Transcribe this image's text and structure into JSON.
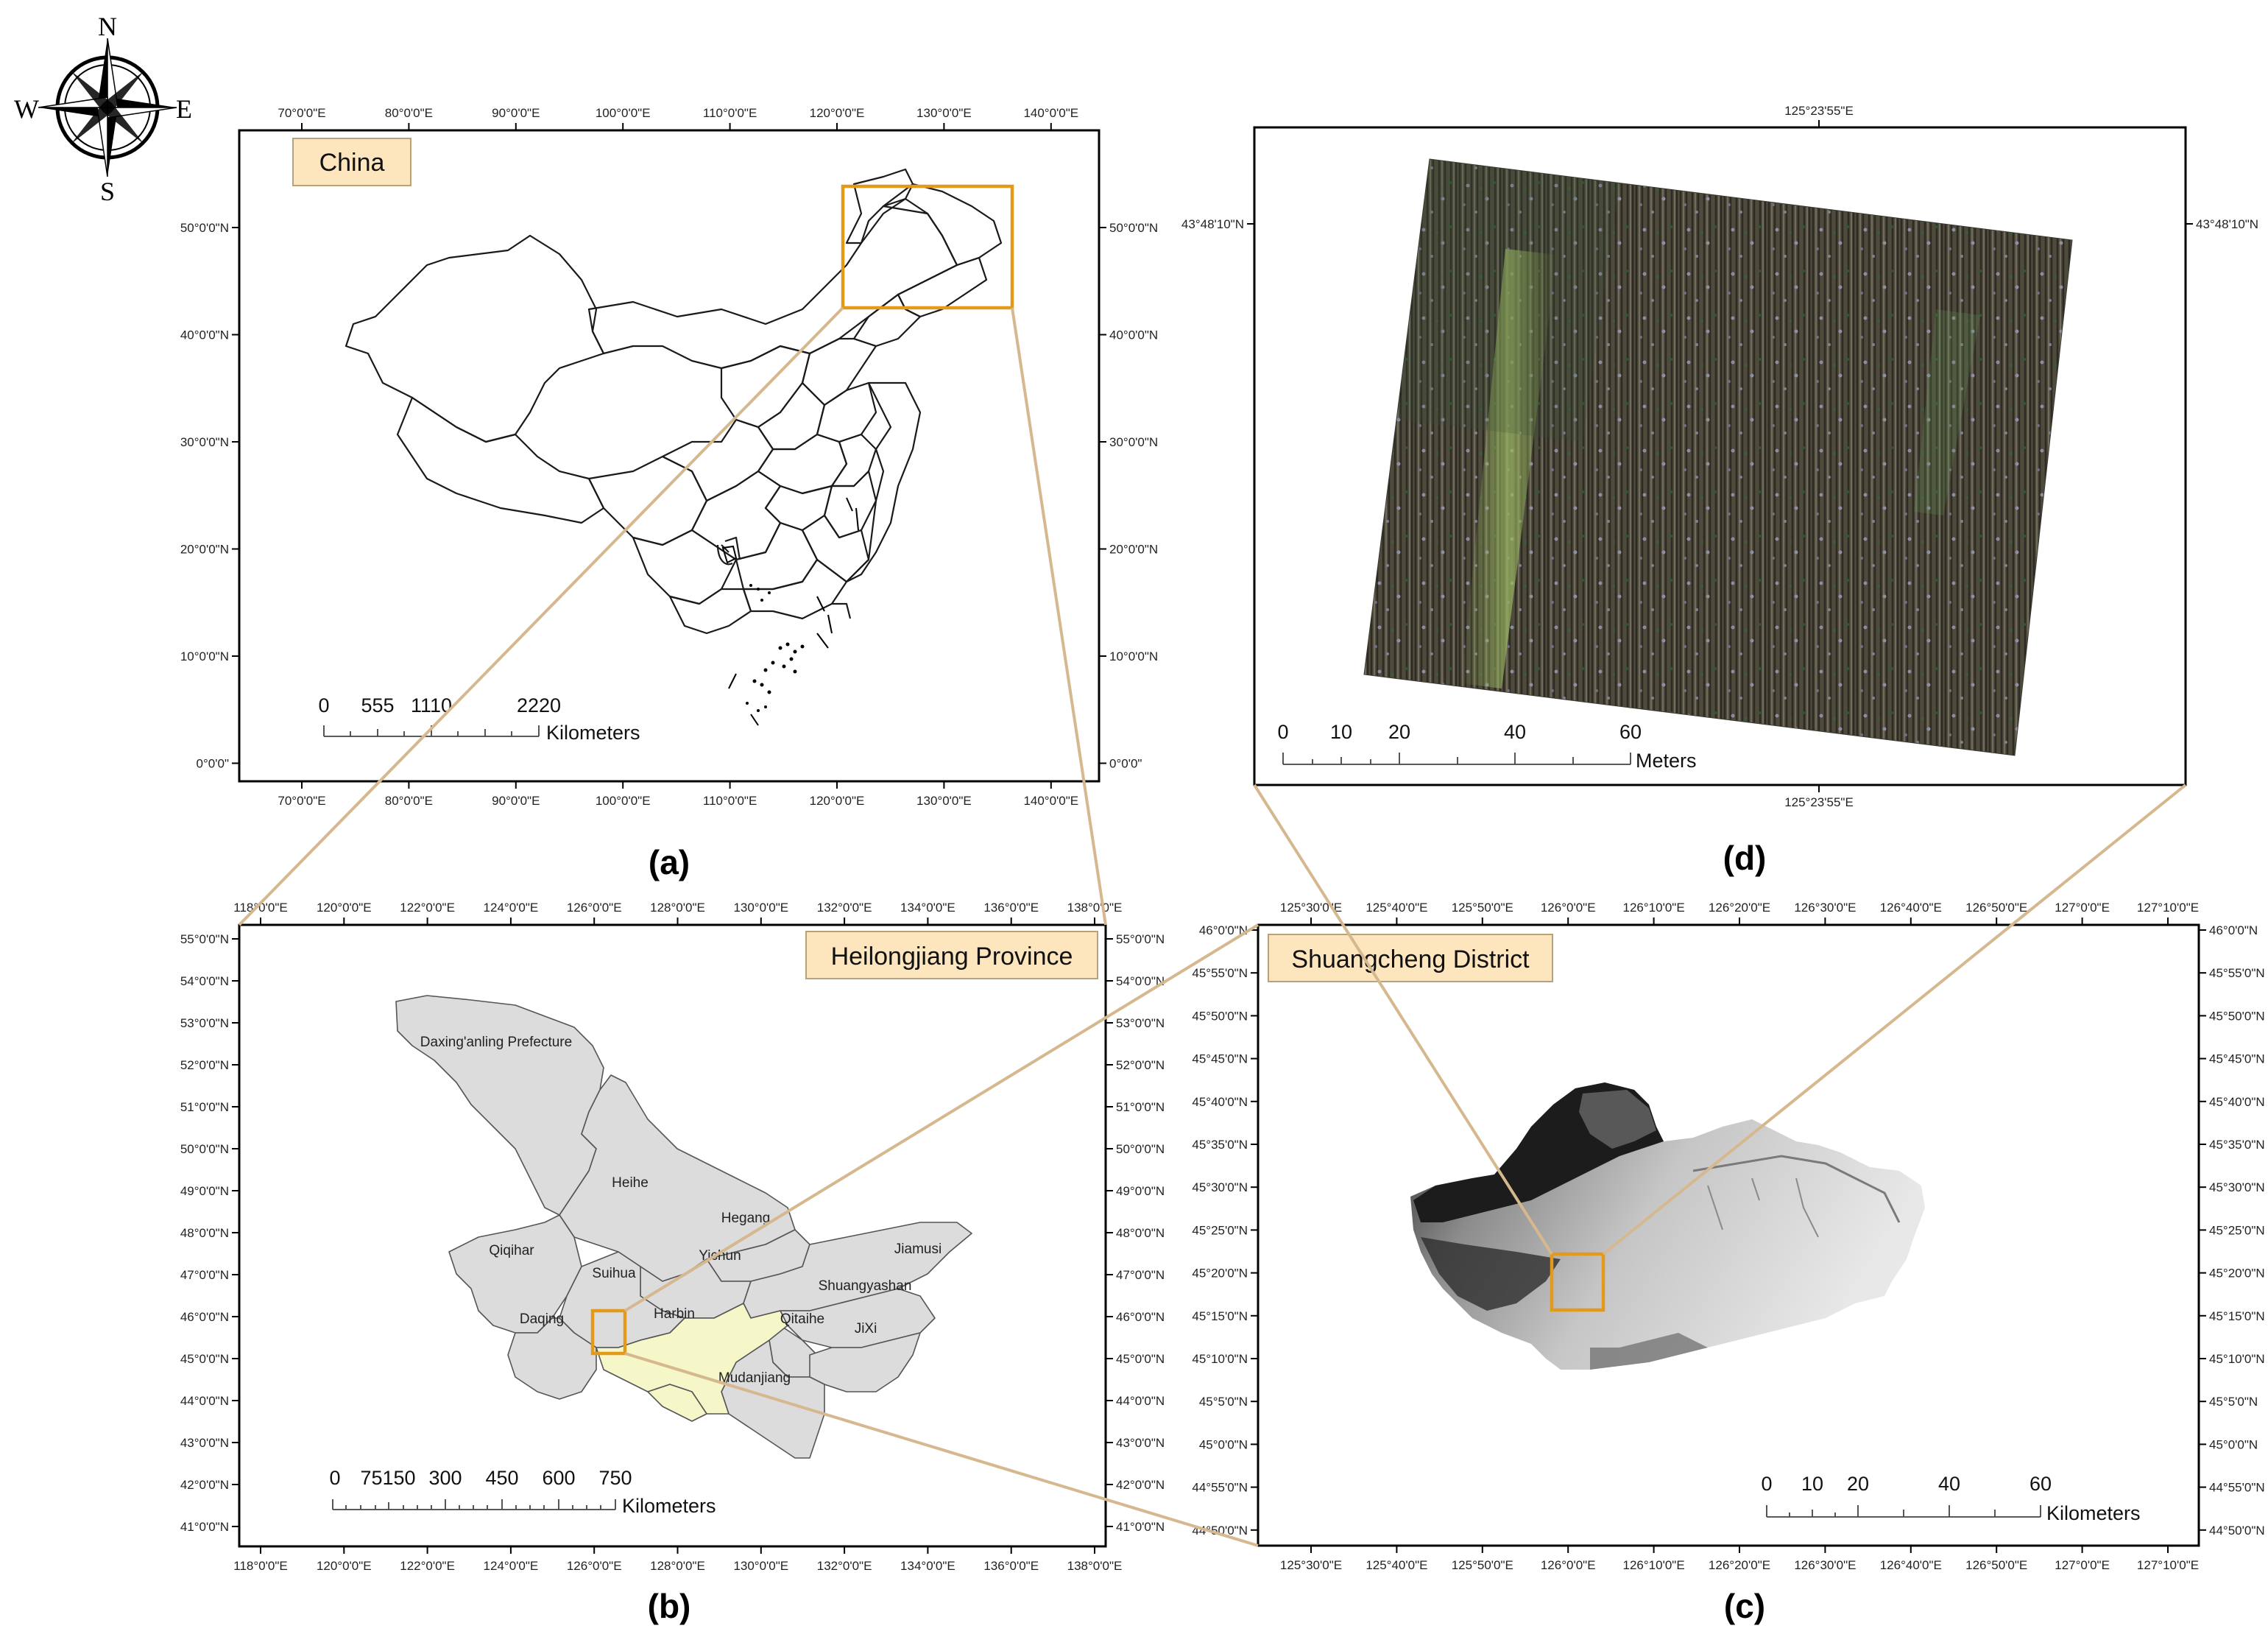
{
  "compass": {
    "n": "N",
    "s": "S",
    "e": "E",
    "w": "W"
  },
  "panel_a": {
    "title": "China",
    "caption": "(a)",
    "lon_ticks": [
      "70°0'0\"E",
      "80°0'0\"E",
      "90°0'0\"E",
      "100°0'0\"E",
      "110°0'0\"E",
      "120°0'0\"E",
      "130°0'0\"E",
      "140°0'0\"E"
    ],
    "lat_ticks": [
      "50°0'0\"N",
      "40°0'0\"N",
      "30°0'0\"N",
      "20°0'0\"N",
      "10°0'0\"N",
      "0°0'0\""
    ],
    "scale": {
      "labels": [
        "0",
        "555",
        "1110",
        "2220"
      ],
      "unit": "Kilometers"
    }
  },
  "panel_b": {
    "title": "Heilongjiang Province",
    "caption": "(b)",
    "lon_ticks": [
      "118°0'0\"E",
      "120°0'0\"E",
      "122°0'0\"E",
      "124°0'0\"E",
      "126°0'0\"E",
      "128°0'0\"E",
      "130°0'0\"E",
      "132°0'0\"E",
      "134°0'0\"E",
      "136°0'0\"E",
      "138°0'0\"E"
    ],
    "lat_ticks": [
      "55°0'0\"N",
      "54°0'0\"N",
      "53°0'0\"N",
      "52°0'0\"N",
      "51°0'0\"N",
      "50°0'0\"N",
      "49°0'0\"N",
      "48°0'0\"N",
      "47°0'0\"N",
      "46°0'0\"N",
      "45°0'0\"N",
      "44°0'0\"N",
      "43°0'0\"N",
      "42°0'0\"N",
      "41°0'0\"N"
    ],
    "cities": {
      "daxinganling": "Daxing'anling Prefecture",
      "heihe": "Heihe",
      "hegang": "Hegang",
      "qiqihar": "Qiqihar",
      "yichun": "Yichun",
      "jiamusi": "Jiamusi",
      "suihua": "Suihua",
      "shuangyashan": "Shuangyashan",
      "daqing": "Daqing",
      "harbin": "Harbin",
      "qitaihe": "Qitaihe",
      "jixi": "JiXi",
      "mudanjiang": "Mudanjiang"
    },
    "scale": {
      "labels": [
        "0",
        "75150",
        "300",
        "450",
        "600",
        "750"
      ],
      "unit": "Kilometers"
    }
  },
  "panel_c": {
    "title": "Shuangcheng District",
    "caption": "(c)",
    "lon_ticks": [
      "125°30'0\"E",
      "125°40'0\"E",
      "125°50'0\"E",
      "126°0'0\"E",
      "126°10'0\"E",
      "126°20'0\"E",
      "126°30'0\"E",
      "126°40'0\"E",
      "126°50'0\"E",
      "127°0'0\"E",
      "127°10'0\"E"
    ],
    "lat_ticks": [
      "46°0'0\"N",
      "45°55'0\"N",
      "45°50'0\"N",
      "45°45'0\"N",
      "45°40'0\"N",
      "45°35'0\"N",
      "45°30'0\"N",
      "45°25'0\"N",
      "45°20'0\"N",
      "45°15'0\"N",
      "45°10'0\"N",
      "45°5'0\"N",
      "45°0'0\"N",
      "44°55'0\"N",
      "44°50'0\"N"
    ],
    "scale": {
      "labels": [
        "0",
        "10",
        "20",
        "40",
        "60"
      ],
      "unit": "Kilometers"
    }
  },
  "panel_d": {
    "caption": "(d)",
    "lon_tick": "125°23'55\"E",
    "lat_tick": "43°48'10\"N",
    "scale": {
      "labels": [
        "0",
        "10",
        "20",
        "40",
        "60"
      ],
      "unit": "Meters"
    }
  },
  "colors": {
    "zoom_box": "#e39a1a",
    "zoom_line": "#d6b88f",
    "title_fill": "#fde5be",
    "harbin_fill": "#f5f7c8",
    "prefecture_fill": "#dcdcdc"
  }
}
